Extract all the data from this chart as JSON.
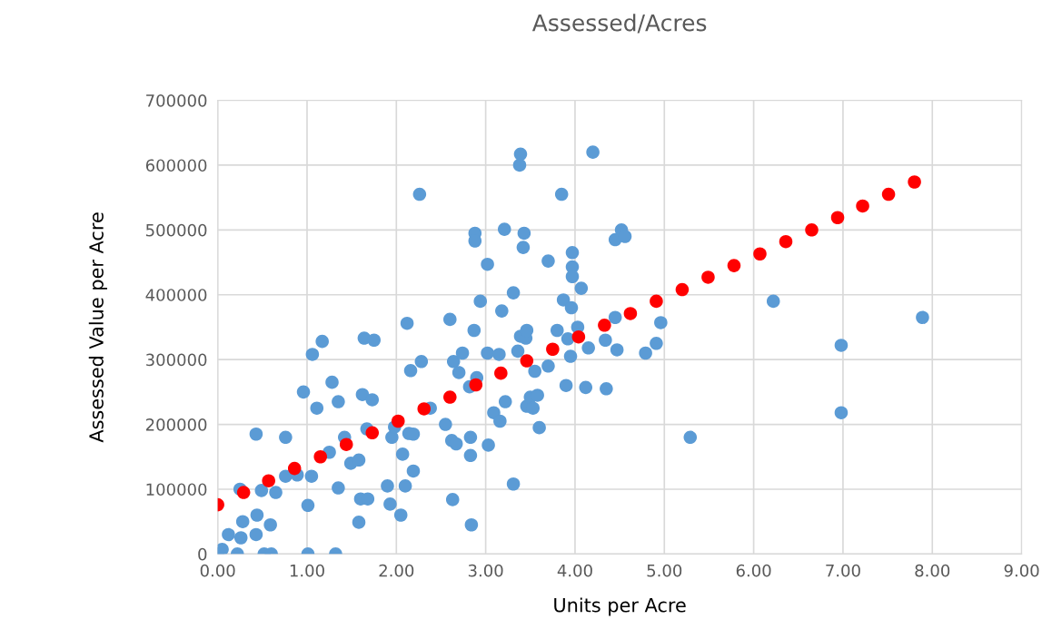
{
  "chart_data": {
    "type": "scatter",
    "title": "Assessed/Acres",
    "xlabel": "Units per Acre",
    "ylabel": "Assessed Value per Acre",
    "xlim": [
      0,
      9
    ],
    "xticks": [
      {
        "value": 0,
        "label": "0.00"
      },
      {
        "value": 1,
        "label": "1.00"
      },
      {
        "value": 2,
        "label": "2.00"
      },
      {
        "value": 3,
        "label": "3.00"
      },
      {
        "value": 4,
        "label": "4.00"
      },
      {
        "value": 5,
        "label": "5.00"
      },
      {
        "value": 6,
        "label": "6.00"
      },
      {
        "value": 7,
        "label": "7.00"
      },
      {
        "value": 8,
        "label": "8.00"
      },
      {
        "value": 9,
        "label": "9.00"
      }
    ],
    "ylim": [
      0,
      700000
    ],
    "yticks": [
      0,
      100000,
      200000,
      300000,
      400000,
      500000,
      600000,
      700000
    ],
    "grid": true,
    "marker": "circle",
    "series": [
      {
        "color": "#5b9bd5",
        "x": [
          0,
          0.05,
          0.12,
          0.22,
          0.25,
          0.26,
          0.28,
          0.43,
          0.44,
          0.43,
          0.49,
          0.52,
          0.6,
          0.59,
          0.65,
          0.76,
          0.76,
          0.89,
          0.96,
          1.01,
          1.01,
          1.05,
          1.06,
          1.11,
          1.17,
          1.25,
          1.28,
          1.32,
          1.35,
          1.35,
          1.42,
          1.49,
          1.58,
          1.58,
          1.6,
          1.62,
          1.64,
          1.67,
          1.68,
          1.73,
          1.75,
          1.9,
          1.93,
          1.95,
          1.98,
          2.05,
          2.07,
          2.1,
          2.12,
          2.14,
          2.16,
          2.19,
          2.19,
          2.26,
          2.28,
          2.38,
          2.55,
          2.6,
          2.62,
          2.63,
          2.64,
          2.67,
          2.7,
          2.74,
          2.82,
          2.83,
          2.83,
          2.84,
          2.87,
          2.88,
          2.88,
          2.9,
          2.94,
          3.02,
          3.02,
          3.03,
          3.09,
          3.15,
          3.16,
          3.18,
          3.21,
          3.22,
          3.31,
          3.31,
          3.36,
          3.39,
          3.38,
          3.39,
          3.42,
          3.43,
          3.45,
          3.46,
          3.46,
          3.5,
          3.53,
          3.55,
          3.58,
          3.6,
          3.7,
          3.7,
          3.8,
          3.85,
          3.87,
          3.9,
          3.92,
          3.95,
          3.96,
          3.97,
          3.97,
          3.97,
          4.03,
          4.07,
          4.12,
          4.15,
          4.2,
          4.34,
          4.35,
          4.45,
          4.45,
          4.47,
          4.52,
          4.56,
          4.79,
          4.91,
          4.96,
          5.29,
          6.22,
          6.98,
          6.98,
          7.89
        ],
        "values": [
          0,
          7000,
          30000,
          0,
          100000,
          25000,
          50000,
          185000,
          60000,
          30000,
          98000,
          0,
          0,
          45000,
          95000,
          180000,
          120000,
          122000,
          250000,
          75000,
          0,
          120000,
          308000,
          225000,
          328000,
          157000,
          265000,
          0,
          235000,
          102000,
          180000,
          140000,
          145000,
          49000,
          85000,
          246000,
          333000,
          193000,
          85000,
          238000,
          330000,
          105000,
          77000,
          180000,
          196000,
          60000,
          154000,
          105000,
          356000,
          186000,
          283000,
          128000,
          185000,
          555000,
          297000,
          225000,
          200000,
          362000,
          175000,
          84000,
          297000,
          170000,
          280000,
          310000,
          258000,
          180000,
          152000,
          45000,
          345000,
          495000,
          483000,
          272000,
          390000,
          447000,
          310000,
          168000,
          218000,
          308000,
          205000,
          375000,
          501000,
          235000,
          403000,
          108000,
          313000,
          336000,
          600000,
          617000,
          473000,
          495000,
          333000,
          228000,
          345000,
          242000,
          225000,
          282000,
          245000,
          195000,
          290000,
          452000,
          345000,
          555000,
          392000,
          260000,
          332000,
          305000,
          380000,
          465000,
          443000,
          428000,
          350000,
          410000,
          257000,
          318000,
          620000,
          330000,
          255000,
          365000,
          485000,
          315000,
          500000,
          490000,
          310000,
          325000,
          357000,
          180000,
          390000,
          322000,
          218000,
          365000
        ]
      },
      {
        "color": "#ff0000",
        "x": [
          0,
          0.29,
          0.57,
          0.86,
          1.15,
          1.44,
          1.73,
          2.02,
          2.31,
          2.6,
          2.89,
          3.17,
          3.46,
          3.75,
          4.04,
          4.33,
          4.62,
          4.91,
          5.2,
          5.49,
          5.78,
          6.07,
          6.36,
          6.65,
          6.94,
          7.22,
          7.51,
          7.8
        ],
        "values": [
          76000,
          95000,
          113000,
          132000,
          150000,
          169000,
          187000,
          205000,
          224000,
          242000,
          261000,
          279000,
          298000,
          316000,
          335000,
          353000,
          371000,
          390000,
          408000,
          427000,
          445000,
          463000,
          482000,
          500000,
          519000,
          537000,
          555000,
          574000
        ]
      }
    ]
  }
}
